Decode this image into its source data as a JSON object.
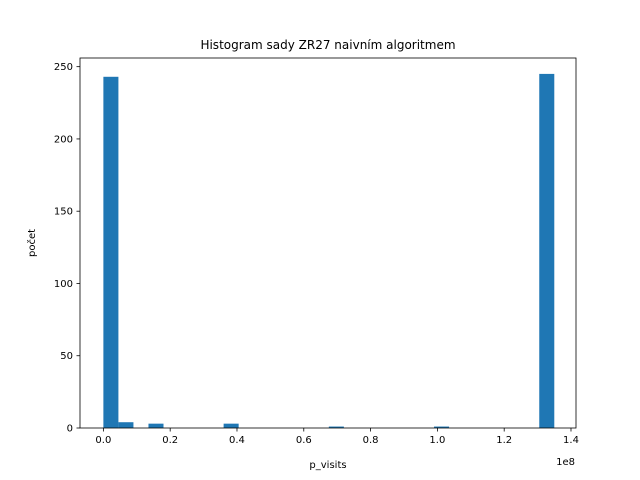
{
  "chart_data": {
    "type": "bar",
    "subtype": "histogram",
    "title": "Histogram sady ZR27 naivním algoritmem",
    "xlabel": "p_visits",
    "ylabel": "počet",
    "x_offset_label": "1e8",
    "xlim": [
      -0.07,
      1.415
    ],
    "ylim": [
      0,
      256
    ],
    "grid": false,
    "bar_color": "#1f77b4",
    "x_ticks": [
      0.0,
      0.2,
      0.4,
      0.6,
      0.8,
      1.0,
      1.2,
      1.4
    ],
    "x_tick_labels": [
      "0.0",
      "0.2",
      "0.4",
      "0.6",
      "0.8",
      "1.0",
      "1.2",
      "1.4"
    ],
    "y_ticks": [
      0,
      50,
      100,
      150,
      200,
      250
    ],
    "y_tick_labels": [
      "0",
      "50",
      "100",
      "150",
      "200",
      "250"
    ],
    "bins": [
      {
        "x0": 0.0,
        "x1": 0.045,
        "count": 243
      },
      {
        "x0": 0.045,
        "x1": 0.09,
        "count": 4
      },
      {
        "x0": 0.09,
        "x1": 0.135,
        "count": 0
      },
      {
        "x0": 0.135,
        "x1": 0.18,
        "count": 3
      },
      {
        "x0": 0.18,
        "x1": 0.225,
        "count": 0
      },
      {
        "x0": 0.225,
        "x1": 0.27,
        "count": 0
      },
      {
        "x0": 0.27,
        "x1": 0.315,
        "count": 0
      },
      {
        "x0": 0.315,
        "x1": 0.36,
        "count": 0
      },
      {
        "x0": 0.36,
        "x1": 0.405,
        "count": 3
      },
      {
        "x0": 0.405,
        "x1": 0.45,
        "count": 0
      },
      {
        "x0": 0.45,
        "x1": 0.495,
        "count": 0
      },
      {
        "x0": 0.495,
        "x1": 0.54,
        "count": 0
      },
      {
        "x0": 0.54,
        "x1": 0.585,
        "count": 0
      },
      {
        "x0": 0.585,
        "x1": 0.63,
        "count": 0
      },
      {
        "x0": 0.63,
        "x1": 0.675,
        "count": 0
      },
      {
        "x0": 0.675,
        "x1": 0.72,
        "count": 1
      },
      {
        "x0": 0.72,
        "x1": 0.765,
        "count": 0
      },
      {
        "x0": 0.765,
        "x1": 0.81,
        "count": 0
      },
      {
        "x0": 0.81,
        "x1": 0.855,
        "count": 0
      },
      {
        "x0": 0.855,
        "x1": 0.9,
        "count": 0
      },
      {
        "x0": 0.9,
        "x1": 0.945,
        "count": 0
      },
      {
        "x0": 0.945,
        "x1": 0.99,
        "count": 0
      },
      {
        "x0": 0.99,
        "x1": 1.035,
        "count": 1
      },
      {
        "x0": 1.035,
        "x1": 1.08,
        "count": 0
      },
      {
        "x0": 1.08,
        "x1": 1.125,
        "count": 0
      },
      {
        "x0": 1.125,
        "x1": 1.17,
        "count": 0
      },
      {
        "x0": 1.17,
        "x1": 1.215,
        "count": 0
      },
      {
        "x0": 1.215,
        "x1": 1.26,
        "count": 0
      },
      {
        "x0": 1.26,
        "x1": 1.305,
        "count": 0
      },
      {
        "x0": 1.305,
        "x1": 1.35,
        "count": 245
      }
    ]
  }
}
